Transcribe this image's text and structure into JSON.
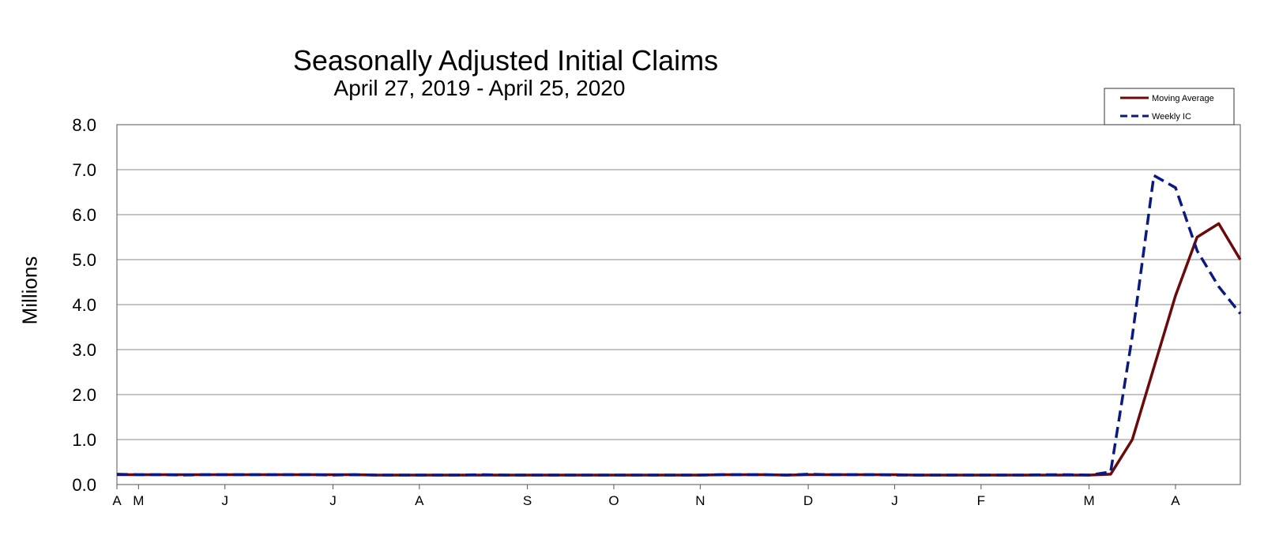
{
  "chart_data": {
    "type": "line",
    "title": "Seasonally Adjusted Initial Claims",
    "subtitle": "April 27, 2019 - April 25, 2020",
    "ylabel": "Millions",
    "ylim": [
      0,
      8
    ],
    "yticks": [
      "0.0",
      "1.0",
      "2.0",
      "3.0",
      "4.0",
      "5.0",
      "6.0",
      "7.0",
      "8.0"
    ],
    "xlim": [
      "2019-04-27",
      "2020-04-25"
    ],
    "xticks": [
      {
        "label": "A",
        "date": "2019-04-27"
      },
      {
        "label": "M",
        "date": "2019-05-04"
      },
      {
        "label": "J",
        "date": "2019-06-01"
      },
      {
        "label": "J",
        "date": "2019-07-06"
      },
      {
        "label": "A",
        "date": "2019-08-03"
      },
      {
        "label": "S",
        "date": "2019-09-07"
      },
      {
        "label": "O",
        "date": "2019-10-05"
      },
      {
        "label": "N",
        "date": "2019-11-02"
      },
      {
        "label": "D",
        "date": "2019-12-07"
      },
      {
        "label": "J",
        "date": "2020-01-04"
      },
      {
        "label": "F",
        "date": "2020-02-01"
      },
      {
        "label": "M",
        "date": "2020-03-07"
      },
      {
        "label": "A",
        "date": "2020-04-04"
      }
    ],
    "grid": true,
    "legend_position": "top-right",
    "series": [
      {
        "name": "Moving Average",
        "color": "#6b0a0a",
        "style": "solid",
        "points": [
          [
            "2019-04-27",
            0.22
          ],
          [
            "2019-05-04",
            0.22
          ],
          [
            "2019-05-11",
            0.22
          ],
          [
            "2019-05-18",
            0.22
          ],
          [
            "2019-05-25",
            0.22
          ],
          [
            "2019-06-01",
            0.22
          ],
          [
            "2019-06-08",
            0.22
          ],
          [
            "2019-06-15",
            0.22
          ],
          [
            "2019-06-22",
            0.22
          ],
          [
            "2019-06-29",
            0.22
          ],
          [
            "2019-07-06",
            0.22
          ],
          [
            "2019-07-13",
            0.22
          ],
          [
            "2019-07-20",
            0.21
          ],
          [
            "2019-07-27",
            0.21
          ],
          [
            "2019-08-03",
            0.21
          ],
          [
            "2019-08-10",
            0.21
          ],
          [
            "2019-08-17",
            0.21
          ],
          [
            "2019-08-24",
            0.21
          ],
          [
            "2019-08-31",
            0.21
          ],
          [
            "2019-09-07",
            0.21
          ],
          [
            "2019-09-14",
            0.21
          ],
          [
            "2019-09-21",
            0.21
          ],
          [
            "2019-09-28",
            0.21
          ],
          [
            "2019-10-05",
            0.21
          ],
          [
            "2019-10-12",
            0.21
          ],
          [
            "2019-10-19",
            0.21
          ],
          [
            "2019-10-26",
            0.21
          ],
          [
            "2019-11-02",
            0.21
          ],
          [
            "2019-11-09",
            0.22
          ],
          [
            "2019-11-16",
            0.22
          ],
          [
            "2019-11-23",
            0.22
          ],
          [
            "2019-11-30",
            0.21
          ],
          [
            "2019-12-07",
            0.22
          ],
          [
            "2019-12-14",
            0.22
          ],
          [
            "2019-12-21",
            0.22
          ],
          [
            "2019-12-28",
            0.22
          ],
          [
            "2020-01-04",
            0.22
          ],
          [
            "2020-01-11",
            0.21
          ],
          [
            "2020-01-18",
            0.21
          ],
          [
            "2020-01-25",
            0.21
          ],
          [
            "2020-02-01",
            0.21
          ],
          [
            "2020-02-08",
            0.21
          ],
          [
            "2020-02-15",
            0.21
          ],
          [
            "2020-02-22",
            0.21
          ],
          [
            "2020-02-29",
            0.21
          ],
          [
            "2020-03-07",
            0.21
          ],
          [
            "2020-03-14",
            0.23
          ],
          [
            "2020-03-21",
            1.0
          ],
          [
            "2020-03-28",
            2.6
          ],
          [
            "2020-04-04",
            4.2
          ],
          [
            "2020-04-11",
            5.5
          ],
          [
            "2020-04-18",
            5.8
          ],
          [
            "2020-04-25",
            5.0
          ]
        ]
      },
      {
        "name": "Weekly IC",
        "color": "#0a1a80",
        "style": "dashed",
        "points": [
          [
            "2019-04-27",
            0.23
          ],
          [
            "2019-05-04",
            0.22
          ],
          [
            "2019-05-11",
            0.22
          ],
          [
            "2019-05-18",
            0.21
          ],
          [
            "2019-05-25",
            0.22
          ],
          [
            "2019-06-01",
            0.22
          ],
          [
            "2019-06-08",
            0.22
          ],
          [
            "2019-06-15",
            0.22
          ],
          [
            "2019-06-22",
            0.22
          ],
          [
            "2019-06-29",
            0.22
          ],
          [
            "2019-07-06",
            0.21
          ],
          [
            "2019-07-13",
            0.22
          ],
          [
            "2019-07-20",
            0.21
          ],
          [
            "2019-07-27",
            0.21
          ],
          [
            "2019-08-03",
            0.21
          ],
          [
            "2019-08-10",
            0.21
          ],
          [
            "2019-08-17",
            0.21
          ],
          [
            "2019-08-24",
            0.22
          ],
          [
            "2019-08-31",
            0.21
          ],
          [
            "2019-09-07",
            0.21
          ],
          [
            "2019-09-14",
            0.21
          ],
          [
            "2019-09-21",
            0.21
          ],
          [
            "2019-09-28",
            0.21
          ],
          [
            "2019-10-05",
            0.21
          ],
          [
            "2019-10-12",
            0.21
          ],
          [
            "2019-10-19",
            0.21
          ],
          [
            "2019-10-26",
            0.21
          ],
          [
            "2019-11-02",
            0.21
          ],
          [
            "2019-11-09",
            0.22
          ],
          [
            "2019-11-16",
            0.22
          ],
          [
            "2019-11-23",
            0.22
          ],
          [
            "2019-11-30",
            0.21
          ],
          [
            "2019-12-07",
            0.23
          ],
          [
            "2019-12-14",
            0.22
          ],
          [
            "2019-12-21",
            0.22
          ],
          [
            "2019-12-28",
            0.22
          ],
          [
            "2020-01-04",
            0.21
          ],
          [
            "2020-01-11",
            0.21
          ],
          [
            "2020-01-18",
            0.21
          ],
          [
            "2020-01-25",
            0.21
          ],
          [
            "2020-02-01",
            0.21
          ],
          [
            "2020-02-08",
            0.21
          ],
          [
            "2020-02-15",
            0.21
          ],
          [
            "2020-02-22",
            0.22
          ],
          [
            "2020-02-29",
            0.22
          ],
          [
            "2020-03-07",
            0.21
          ],
          [
            "2020-03-14",
            0.28
          ],
          [
            "2020-03-21",
            3.3
          ],
          [
            "2020-03-28",
            6.87
          ],
          [
            "2020-04-04",
            6.6
          ],
          [
            "2020-04-11",
            5.2
          ],
          [
            "2020-04-18",
            4.4
          ],
          [
            "2020-04-25",
            3.8
          ]
        ]
      }
    ]
  }
}
